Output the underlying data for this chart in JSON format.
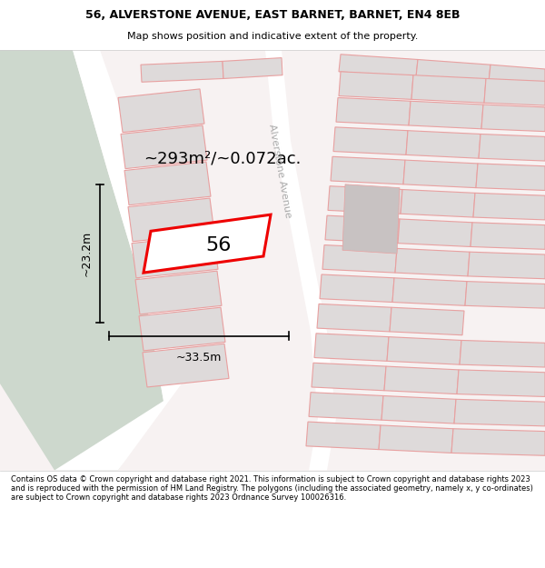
{
  "title_line1": "56, ALVERSTONE AVENUE, EAST BARNET, BARNET, EN4 8EB",
  "title_line2": "Map shows position and indicative extent of the property.",
  "footer_text": "Contains OS data © Crown copyright and database right 2021. This information is subject to Crown copyright and database rights 2023 and is reproduced with the permission of HM Land Registry. The polygons (including the associated geometry, namely x, y co-ordinates) are subject to Crown copyright and database rights 2023 Ordnance Survey 100026316.",
  "background_color": "#f7f2f2",
  "green_area_color": "#cdd8cd",
  "building_face_color": "#dedada",
  "building_edge_color": "#e8a0a0",
  "road_fill_color": "#ece5e5",
  "highlight_color": "#ee0000",
  "street_label": "Alverstone Avenue",
  "property_label": "56",
  "area_label": "~293m²/~0.072ac.",
  "width_label": "~33.5m",
  "height_label": "~23.2m",
  "fig_width": 6.0,
  "fig_height": 6.25
}
